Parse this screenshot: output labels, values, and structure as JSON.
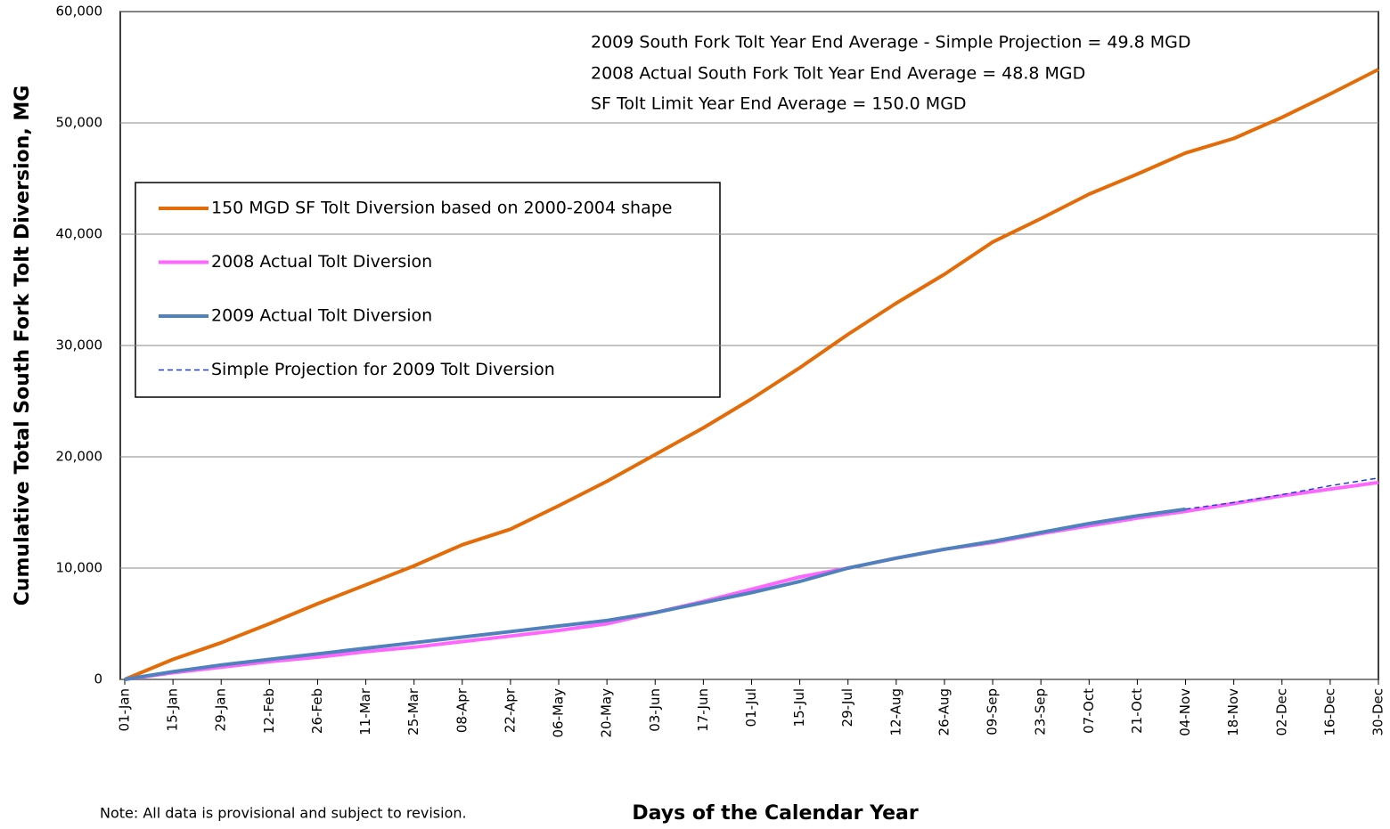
{
  "chart_data": {
    "type": "line",
    "x_label": "Days of the Calendar Year",
    "y_label": "Cumulative Total South Fork Tolt Diversion, MG",
    "annotations": [
      "2009 South  Fork Tolt Year End Average - Simple Projection = 49.8 MGD",
      "2008 Actual South  Fork  Tolt Year End Average = 48.8 MGD",
      "SF Tolt Limit Year End Average = 150.0 MGD"
    ],
    "note": "Note: All data is provisional and subject to revision.",
    "categories": [
      "01-Jan",
      "15-Jan",
      "29-Jan",
      "12-Feb",
      "26-Feb",
      "11-Mar",
      "25-Mar",
      "08-Apr",
      "22-Apr",
      "06-May",
      "20-May",
      "03-Jun",
      "17-Jun",
      "01-Jul",
      "15-Jul",
      "29-Jul",
      "12-Aug",
      "26-Aug",
      "09-Sep",
      "23-Sep",
      "07-Oct",
      "21-Oct",
      "04-Nov",
      "18-Nov",
      "02-Dec",
      "16-Dec",
      "30-Dec"
    ],
    "series": [
      {
        "name": "150 MGD SF Tolt Diversion based on 2000-2004 shape",
        "color": "#e36c09",
        "width": 4,
        "dash": false,
        "values": [
          0,
          1800,
          3300,
          5000,
          6800,
          8500,
          10200,
          12100,
          13500,
          15600,
          17800,
          20200,
          22600,
          25200,
          28000,
          31000,
          33800,
          36400,
          39300,
          41400,
          43600,
          45400,
          47300,
          48600,
          50500,
          52600,
          54800
        ]
      },
      {
        "name": "2008 Actual Tolt Diversion",
        "color": "#ff66ff",
        "width": 4,
        "dash": false,
        "values": [
          0,
          600,
          1100,
          1600,
          2000,
          2500,
          2900,
          3400,
          3900,
          4400,
          5000,
          6000,
          7000,
          8100,
          9200,
          10000,
          10900,
          11700,
          12300,
          13100,
          13800,
          14500,
          15100,
          15800,
          16500,
          17100,
          17700
        ]
      },
      {
        "name": "2009 Actual Tolt Diversion",
        "color": "#4f81bd",
        "width": 4,
        "dash": false,
        "values": [
          0,
          700,
          1300,
          1800,
          2300,
          2800,
          3300,
          3800,
          4300,
          4800,
          5300,
          6000,
          6900,
          7800,
          8800,
          10000,
          10900,
          11700,
          12400,
          13200,
          14000,
          14700,
          15300,
          null,
          null,
          null,
          null
        ]
      },
      {
        "name": "Simple Projection for 2009 Tolt Diversion",
        "color": "#1f3fd0",
        "width": 1.5,
        "dash": true,
        "values": [
          null,
          null,
          null,
          null,
          null,
          null,
          null,
          null,
          null,
          null,
          null,
          null,
          null,
          null,
          null,
          null,
          null,
          null,
          null,
          null,
          null,
          null,
          15300,
          15900,
          16600,
          17400,
          18100
        ]
      }
    ],
    "ylim": [
      0,
      60000
    ],
    "yticks": [
      0,
      {
        "value": 10000,
        "label": "10,000"
      },
      {
        "value": 20000,
        "label": "20,000"
      },
      {
        "value": 30000,
        "label": "30,000"
      },
      {
        "value": 40000,
        "label": "40,000"
      },
      {
        "value": 50000,
        "label": "50,000"
      },
      {
        "value": 60000,
        "label": "60,000"
      }
    ],
    "grid": true
  }
}
